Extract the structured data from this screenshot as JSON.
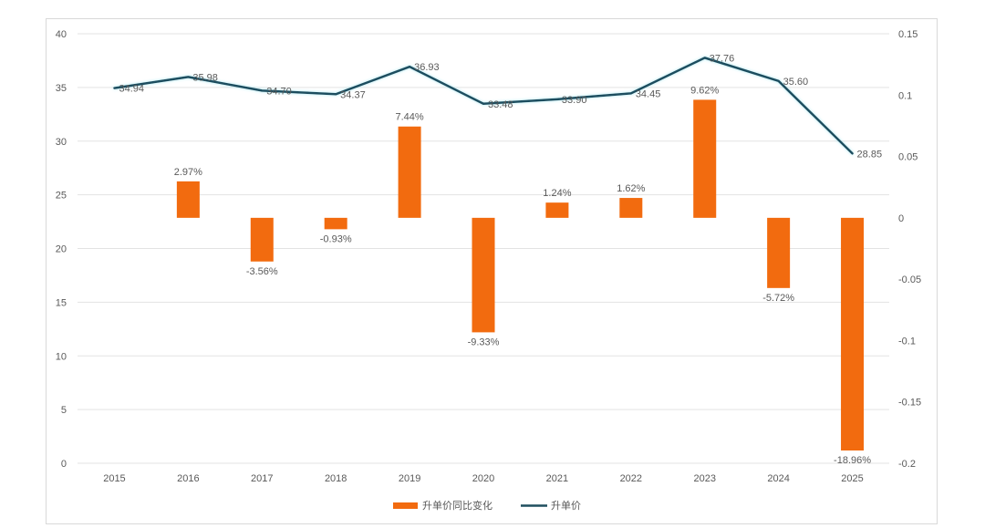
{
  "chart_data": {
    "type": "bar+line",
    "title": "",
    "categories": [
      "2015",
      "2016",
      "2017",
      "2018",
      "2019",
      "2020",
      "2021",
      "2022",
      "2023",
      "2024",
      "2025"
    ],
    "series": [
      {
        "name": "升单价同比变化",
        "type": "bar",
        "axis": "right",
        "color": "#F26B0F",
        "values": [
          null,
          0.0297,
          -0.0356,
          -0.0093,
          0.0744,
          -0.0933,
          0.0124,
          0.0162,
          0.0962,
          -0.0572,
          -0.1896
        ],
        "labels": [
          "",
          "2.97%",
          "-3.56%",
          "-0.93%",
          "7.44%",
          "-9.33%",
          "1.24%",
          "1.62%",
          "9.62%",
          "-5.72%",
          "-18.96%"
        ]
      },
      {
        "name": "升单价",
        "type": "line",
        "axis": "left",
        "color": "#1F4E5F",
        "values": [
          34.94,
          35.98,
          34.7,
          34.37,
          36.93,
          33.48,
          33.9,
          34.45,
          37.76,
          35.6,
          28.85
        ],
        "labels": [
          "34.94",
          "35.98",
          "34.70",
          "34.37",
          "36.93",
          "33.48",
          "33.90",
          "34.45",
          "37.76",
          "35.60",
          "28.85"
        ]
      }
    ],
    "y_left": {
      "label": "",
      "range": [
        0,
        40
      ],
      "ticks": [
        "0",
        "5",
        "10",
        "15",
        "20",
        "25",
        "30",
        "35",
        "40"
      ],
      "tick_values": [
        0,
        5,
        10,
        15,
        20,
        25,
        30,
        35,
        40
      ]
    },
    "y_right": {
      "label": "",
      "range": [
        -0.2,
        0.15
      ],
      "ticks": [
        "-0.2",
        "-0.15",
        "-0.1",
        "-0.05",
        "0",
        "0.05",
        "0.1",
        "0.15"
      ],
      "tick_values": [
        -0.2,
        -0.15,
        -0.1,
        -0.05,
        0,
        0.05,
        0.1,
        0.15
      ]
    },
    "xlabel": "",
    "grid": true,
    "legend": {
      "position": "bottom",
      "entries": [
        "升单价同比变化",
        "升单价"
      ]
    }
  }
}
